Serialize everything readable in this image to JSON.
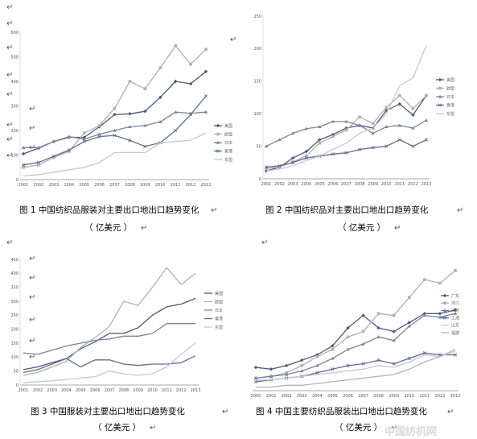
{
  "chart_data": [
    {
      "type": "line",
      "x": [
        "2001",
        "2002",
        "2003",
        "2004",
        "2005",
        "2006",
        "2007",
        "2008",
        "2009",
        "2010",
        "2011",
        "2012",
        "2013"
      ],
      "ylim": [
        0,
        600
      ],
      "yticks": [
        "0",
        "100",
        "200",
        "300",
        "400",
        "500",
        "600"
      ],
      "grid": false,
      "legend_placement": "right",
      "series": [
        {
          "name": "美国",
          "values": [
            105,
            128,
            155,
            172,
            172,
            215,
            265,
            268,
            278,
            335,
            400,
            390,
            440
          ]
        },
        {
          "name": "欧盟",
          "values": [
            50,
            60,
            90,
            115,
            190,
            220,
            290,
            400,
            370,
            455,
            545,
            470,
            530
          ]
        },
        {
          "name": "日本",
          "values": [
            130,
            130,
            155,
            175,
            165,
            185,
            200,
            215,
            220,
            235,
            275,
            270,
            275
          ]
        },
        {
          "name": "香港",
          "values": [
            60,
            70,
            95,
            120,
            155,
            175,
            180,
            160,
            135,
            150,
            200,
            265,
            340
          ]
        },
        {
          "name": "东盟",
          "values": [
            15,
            20,
            30,
            40,
            50,
            70,
            110,
            110,
            110,
            150,
            155,
            160,
            190
          ]
        }
      ],
      "caption": "图 1  中国纺织品服装对主要出口地出口趋势变化",
      "unit": "（ 亿美元 ）"
    },
    {
      "type": "line",
      "x": [
        "2001",
        "2002",
        "2003",
        "2004",
        "2005",
        "2006",
        "2007",
        "2008",
        "2009",
        "2010",
        "2011",
        "2012",
        "2013"
      ],
      "ylim": [
        0,
        250
      ],
      "yticks": [
        "0",
        "50",
        "100",
        "150",
        "200",
        "250"
      ],
      "grid": false,
      "legend_placement": "right",
      "series": [
        {
          "name": "美国",
          "values": [
            12,
            18,
            32,
            42,
            60,
            68,
            78,
            82,
            78,
            105,
            115,
            98,
            128
          ]
        },
        {
          "name": "欧盟",
          "values": [
            16,
            18,
            26,
            35,
            55,
            65,
            75,
            95,
            85,
            110,
            128,
            108,
            128
          ]
        },
        {
          "name": "日本",
          "values": [
            50,
            60,
            70,
            77,
            80,
            88,
            88,
            82,
            70,
            80,
            82,
            78,
            90
          ]
        },
        {
          "name": "香港",
          "values": [
            18,
            20,
            25,
            32,
            35,
            38,
            40,
            45,
            48,
            50,
            60,
            50,
            60
          ]
        },
        {
          "name": "东盟",
          "values": [
            12,
            15,
            20,
            28,
            35,
            45,
            55,
            70,
            78,
            100,
            143,
            155,
            205
          ]
        }
      ],
      "caption": "图 2  中国纺织品对主要出口地出口趋势变化",
      "unit": "（ 亿美元 ）"
    },
    {
      "type": "line",
      "x": [
        "2001",
        "2002",
        "2003",
        "2004",
        "2005",
        "2006",
        "2007",
        "2008",
        "2009",
        "2010",
        "2011",
        "2012",
        "2013"
      ],
      "ylim": [
        0,
        450
      ],
      "yticks": [
        "0",
        "50",
        "100",
        "150",
        "200",
        "250",
        "300",
        "350",
        "400",
        "450"
      ],
      "grid": false,
      "legend_placement": "right",
      "series": [
        {
          "name": "美国",
          "values": [
            55,
            65,
            80,
            95,
            130,
            155,
            185,
            185,
            205,
            250,
            280,
            290,
            310
          ]
        },
        {
          "name": "欧盟",
          "values": [
            35,
            45,
            65,
            85,
            135,
            170,
            210,
            300,
            285,
            350,
            420,
            360,
            400
          ]
        },
        {
          "name": "日本",
          "values": [
            115,
            110,
            125,
            140,
            150,
            160,
            165,
            175,
            175,
            185,
            220,
            220,
            220
          ]
        },
        {
          "name": "香港",
          "values": [
            45,
            55,
            75,
            95,
            65,
            90,
            90,
            75,
            70,
            75,
            75,
            80,
            105
          ]
        },
        {
          "name": "东盟",
          "values": [
            8,
            12,
            15,
            20,
            25,
            30,
            50,
            40,
            35,
            40,
            65,
            110,
            150
          ]
        }
      ],
      "caption": "图 3  中国服装对主要出口地出口趋势变化",
      "unit": "（ 亿美元 ）"
    },
    {
      "type": "line",
      "x": [
        "2000",
        "2001",
        "2002",
        "2003",
        "2004",
        "2005",
        "2006",
        "2007",
        "2008",
        "2009",
        "2010",
        "2011",
        "2012",
        "2013"
      ],
      "ylim": [
        0,
        800
      ],
      "yticks": [
        "0",
        "100",
        "200",
        "300",
        "400",
        "500",
        "600",
        "700",
        "800"
      ],
      "grid": false,
      "legend_placement": "right",
      "series": [
        {
          "name": "广东",
          "values": [
            130,
            120,
            140,
            170,
            200,
            250,
            350,
            420,
            350,
            330,
            380,
            430,
            430,
            450
          ]
        },
        {
          "name": "浙江",
          "values": [
            70,
            80,
            100,
            140,
            190,
            230,
            300,
            330,
            430,
            420,
            520,
            620,
            600,
            670
          ]
        },
        {
          "name": "江苏",
          "values": [
            70,
            80,
            90,
            110,
            140,
            180,
            230,
            260,
            300,
            280,
            360,
            420,
            410,
            430
          ]
        },
        {
          "name": "上海",
          "values": [
            50,
            60,
            70,
            80,
            100,
            120,
            140,
            150,
            170,
            150,
            180,
            210,
            200,
            200
          ]
        },
        {
          "name": "山东",
          "values": [
            60,
            60,
            70,
            80,
            90,
            100,
            110,
            120,
            140,
            130,
            160,
            200,
            190,
            220
          ]
        },
        {
          "name": "福建",
          "values": [
            20,
            20,
            30,
            30,
            40,
            50,
            60,
            70,
            80,
            90,
            120,
            160,
            190,
            230
          ]
        }
      ],
      "caption": "图 4  中国主要纺织品服装出口地出口趋势变化",
      "unit": "（ 亿美元 ）"
    }
  ],
  "colors": {
    "c1": "#4a5a7a",
    "c2": "#b0b0b0",
    "c3": "#7a8499",
    "c4": "#5b6f93",
    "c5": "#c4c8d0",
    "c6": "#aeb3bc"
  },
  "watermark": "中国纺机网",
  "para_mark": "↵"
}
